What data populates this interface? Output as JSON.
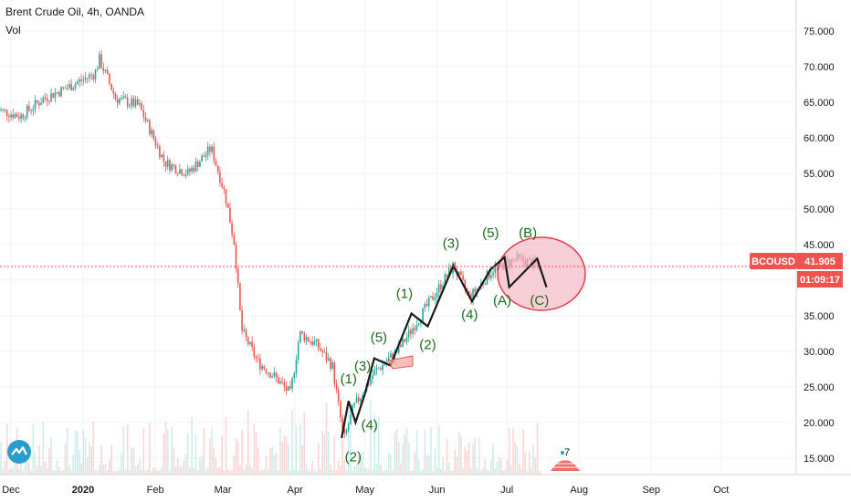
{
  "header": {
    "symbol_line": "Brent Crude Oil, 4h, OANDA",
    "volume_label": "Vol"
  },
  "price_badges": {
    "ticker": "BCOUSD",
    "last_price": "41.905",
    "countdown": "01:09:17"
  },
  "volume_badge": "7",
  "colors": {
    "up": "#26a69a",
    "down": "#ef5350",
    "wave_line": "#1a1a1a",
    "wave_text": "#1e6b1e",
    "ellipse_fill": "#f4b3c2",
    "ellipse_stroke": "#e53950",
    "price_line": "#ef5350"
  },
  "icons": [
    "tradingview-logo-icon",
    "flag-volume-icon"
  ],
  "chart_data": {
    "type": "candlestick",
    "interval": "4h",
    "title": "Brent Crude Oil, 4h, OANDA",
    "x_ticks": [
      "Dec",
      "2020",
      "Feb",
      "Mar",
      "Apr",
      "May",
      "Jun",
      "Jul",
      "Aug",
      "Sep",
      "Oct"
    ],
    "y_ticks": [
      "15.000",
      "20.000",
      "25.000",
      "30.000",
      "35.000",
      "40.000",
      "45.000",
      "50.000",
      "55.000",
      "60.000",
      "65.000",
      "70.000",
      "75.000"
    ],
    "ylim": [
      12.5,
      77.5
    ],
    "last_price": 41.905,
    "price_path": [
      [
        "2019-11-25",
        64.0
      ],
      [
        "2019-12-05",
        63.0
      ],
      [
        "2019-12-15",
        65.5
      ],
      [
        "2019-12-25",
        67.0
      ],
      [
        "2020-01-06",
        69.0
      ],
      [
        "2020-01-08",
        71.0
      ],
      [
        "2020-01-15",
        65.5
      ],
      [
        "2020-01-25",
        64.5
      ],
      [
        "2020-02-05",
        56.5
      ],
      [
        "2020-02-15",
        55.0
      ],
      [
        "2020-02-25",
        58.5
      ],
      [
        "2020-03-02",
        52.0
      ],
      [
        "2020-03-06",
        45.0
      ],
      [
        "2020-03-09",
        33.0
      ],
      [
        "2020-03-16",
        28.5
      ],
      [
        "2020-03-23",
        26.5
      ],
      [
        "2020-03-30",
        24.0
      ],
      [
        "2020-04-03",
        32.5
      ],
      [
        "2020-04-10",
        31.0
      ],
      [
        "2020-04-17",
        28.0
      ],
      [
        "2020-04-22",
        17.5
      ],
      [
        "2020-04-26",
        22.0
      ],
      [
        "2020-05-05",
        27.0
      ],
      [
        "2020-05-15",
        30.0
      ],
      [
        "2020-05-25",
        35.0
      ],
      [
        "2020-06-08",
        42.0
      ],
      [
        "2020-06-15",
        37.5
      ],
      [
        "2020-06-25",
        41.5
      ],
      [
        "2020-07-05",
        43.0
      ],
      [
        "2020-07-15",
        42.0
      ]
    ],
    "wave_path": [
      [
        "2020-04-21",
        17.8
      ],
      [
        "2020-04-24",
        23.0
      ],
      [
        "2020-04-27",
        20.0
      ],
      [
        "2020-05-01",
        24.0
      ],
      [
        "2020-05-05",
        29.0
      ],
      [
        "2020-05-12",
        28.0
      ],
      [
        "2020-05-21",
        35.3
      ],
      [
        "2020-05-28",
        33.5
      ],
      [
        "2020-06-08",
        42.0
      ],
      [
        "2020-06-16",
        37.0
      ],
      [
        "2020-06-24",
        41.5
      ],
      [
        "2020-06-30",
        43.2
      ],
      [
        "2020-07-02",
        39.0
      ],
      [
        "2020-07-14",
        43.0
      ],
      [
        "2020-07-18",
        39.0
      ]
    ],
    "wave_labels": [
      {
        "text": "(1)",
        "x": "2020-04-24",
        "y": 25.5
      },
      {
        "text": "(2)",
        "x": "2020-04-26",
        "y": 14.5
      },
      {
        "text": "(3)",
        "x": "2020-04-30",
        "y": 27.3
      },
      {
        "text": "(4)",
        "x": "2020-05-03",
        "y": 19.0
      },
      {
        "text": "(5)",
        "x": "2020-05-07",
        "y": 31.3
      },
      {
        "text": "(1)",
        "x": "2020-05-18",
        "y": 37.5
      },
      {
        "text": "(2)",
        "x": "2020-05-28",
        "y": 30.3
      },
      {
        "text": "(3)",
        "x": "2020-06-07",
        "y": 44.5
      },
      {
        "text": "(4)",
        "x": "2020-06-15",
        "y": 34.5
      },
      {
        "text": "(5)",
        "x": "2020-06-24",
        "y": 46.0
      },
      {
        "text": "(A)",
        "x": "2020-06-29",
        "y": 36.5
      },
      {
        "text": "(B)",
        "x": "2020-07-10",
        "y": 46.0
      },
      {
        "text": "(C)",
        "x": "2020-07-15",
        "y": 36.5
      }
    ]
  }
}
